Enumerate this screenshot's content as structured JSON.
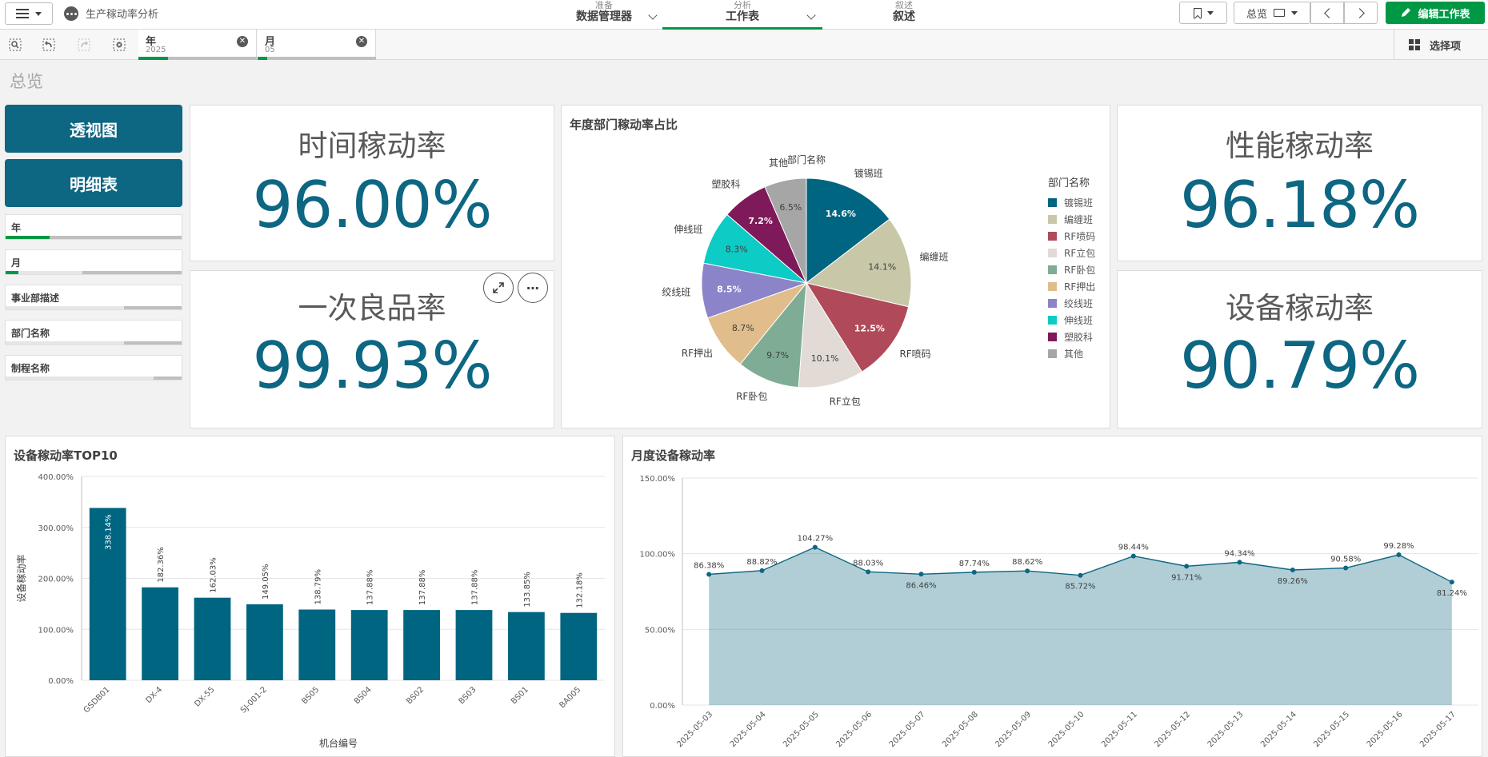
{
  "app": {
    "title": "生产稼动率分析"
  },
  "nav": {
    "prepare": {
      "sub": "准备",
      "main": "数据管理器"
    },
    "analyze": {
      "sub": "分析",
      "main": "工作表"
    },
    "narrate": {
      "sub": "叙述",
      "main": "叙述"
    }
  },
  "toolbar": {
    "sheet_label": "总览",
    "edit_label": "编辑工作表"
  },
  "selections": {
    "chips": [
      {
        "title": "年",
        "value": "2025"
      },
      {
        "title": "月",
        "value": "05"
      }
    ],
    "right_label": "选择项"
  },
  "sheet": {
    "title": "总览"
  },
  "buttons": {
    "pivot": "透视图",
    "detail": "明细表"
  },
  "filters": [
    {
      "label": "年"
    },
    {
      "label": "月"
    },
    {
      "label": "事业部描述"
    },
    {
      "label": "部门名称"
    },
    {
      "label": "制程名称"
    }
  ],
  "kpis": {
    "time": {
      "label": "时间稼动率",
      "value": "96.00%"
    },
    "quality": {
      "label": "一次良品率",
      "value": "99.93%"
    },
    "perf": {
      "label": "性能稼动率",
      "value": "96.18%"
    },
    "equip": {
      "label": "设备稼动率",
      "value": "90.79%"
    }
  },
  "icons": [
    "menu-icon",
    "app-dots-icon",
    "bookmark-icon",
    "screen-icon",
    "pencil-icon",
    "smart-search-icon",
    "step-back-icon",
    "step-forward-icon",
    "clear-selections-icon",
    "close-icon",
    "grid-icon",
    "expand-icon",
    "more-icon"
  ],
  "chart_data": [
    {
      "type": "pie",
      "title": "年度部门稼动率占比",
      "subtitle": "部门名称",
      "legend_title": "部门名称",
      "legend_position": "right",
      "slices": [
        {
          "label": "镀锡班",
          "value": 14.6,
          "display": "14.6%",
          "color": "#006580"
        },
        {
          "label": "编缠班",
          "value": 14.1,
          "display": "14.1%",
          "color": "#c8c8a9"
        },
        {
          "label": "RF喷码",
          "value": 12.5,
          "display": "12.5%",
          "color": "#b04a5a"
        },
        {
          "label": "RF立包",
          "value": 10.1,
          "display": "10.1%",
          "color": "#e2dad5"
        },
        {
          "label": "RF卧包",
          "value": 9.7,
          "display": "9.7%",
          "color": "#7fac94"
        },
        {
          "label": "RF押出",
          "value": 8.7,
          "display": "8.7%",
          "color": "#e0bd8a"
        },
        {
          "label": "绞线班",
          "value": 8.5,
          "display": "8.5%",
          "color": "#8b84c9"
        },
        {
          "label": "伸线班",
          "value": 8.3,
          "display": "8.3%",
          "color": "#0dcbc5"
        },
        {
          "label": "塑胶科",
          "value": 7.2,
          "display": "7.2%",
          "color": "#7e1a59"
        },
        {
          "label": "其他",
          "value": 6.5,
          "display": "6.5%",
          "color": "#a6a6a6"
        }
      ]
    },
    {
      "type": "bar",
      "title": "设备稼动率TOP10",
      "xlabel": "机台编号",
      "ylabel": "设备稼动率",
      "ylim": [
        0,
        400
      ],
      "y_ticks": [
        "0.00%",
        "100.00%",
        "200.00%",
        "300.00%",
        "400.00%"
      ],
      "color": "#006580",
      "categories": [
        "GSDB01",
        "DX-4",
        "DX-55",
        "SJ-001-2",
        "BS05",
        "BS04",
        "BS02",
        "BS03",
        "BS01",
        "BA005"
      ],
      "values": [
        338.14,
        182.36,
        162.03,
        149.05,
        138.79,
        137.88,
        137.88,
        137.88,
        133.85,
        132.18
      ],
      "labels": [
        "338.14%",
        "182.36%",
        "162.03%",
        "149.05%",
        "138.79%",
        "137.88%",
        "137.88%",
        "137.88%",
        "133.85%",
        "132.18%"
      ]
    },
    {
      "type": "area",
      "title": "月度设备稼动率",
      "ylim": [
        0,
        150
      ],
      "y_ticks": [
        "0.00%",
        "50.00%",
        "100.00%",
        "150.00%"
      ],
      "color": "#0d6682",
      "x": [
        "2025-05-03",
        "2025-05-04",
        "2025-05-05",
        "2025-05-06",
        "2025-05-07",
        "2025-05-08",
        "2025-05-09",
        "2025-05-10",
        "2025-05-11",
        "2025-05-12",
        "2025-05-13",
        "2025-05-14",
        "2025-05-15",
        "2025-05-16",
        "2025-05-17"
      ],
      "values": [
        86.38,
        88.82,
        104.27,
        88.03,
        86.46,
        87.74,
        88.62,
        85.72,
        98.44,
        91.71,
        94.34,
        89.26,
        90.58,
        99.28,
        81.24
      ],
      "labels": [
        "86.38%",
        "88.82%",
        "104.27%",
        "88.03%",
        "86.46%",
        "87.74%",
        "88.62%",
        "85.72%",
        "98.44%",
        "91.71%",
        "94.34%",
        "89.26%",
        "90.58%",
        "99.28%",
        "81.24%"
      ]
    }
  ]
}
